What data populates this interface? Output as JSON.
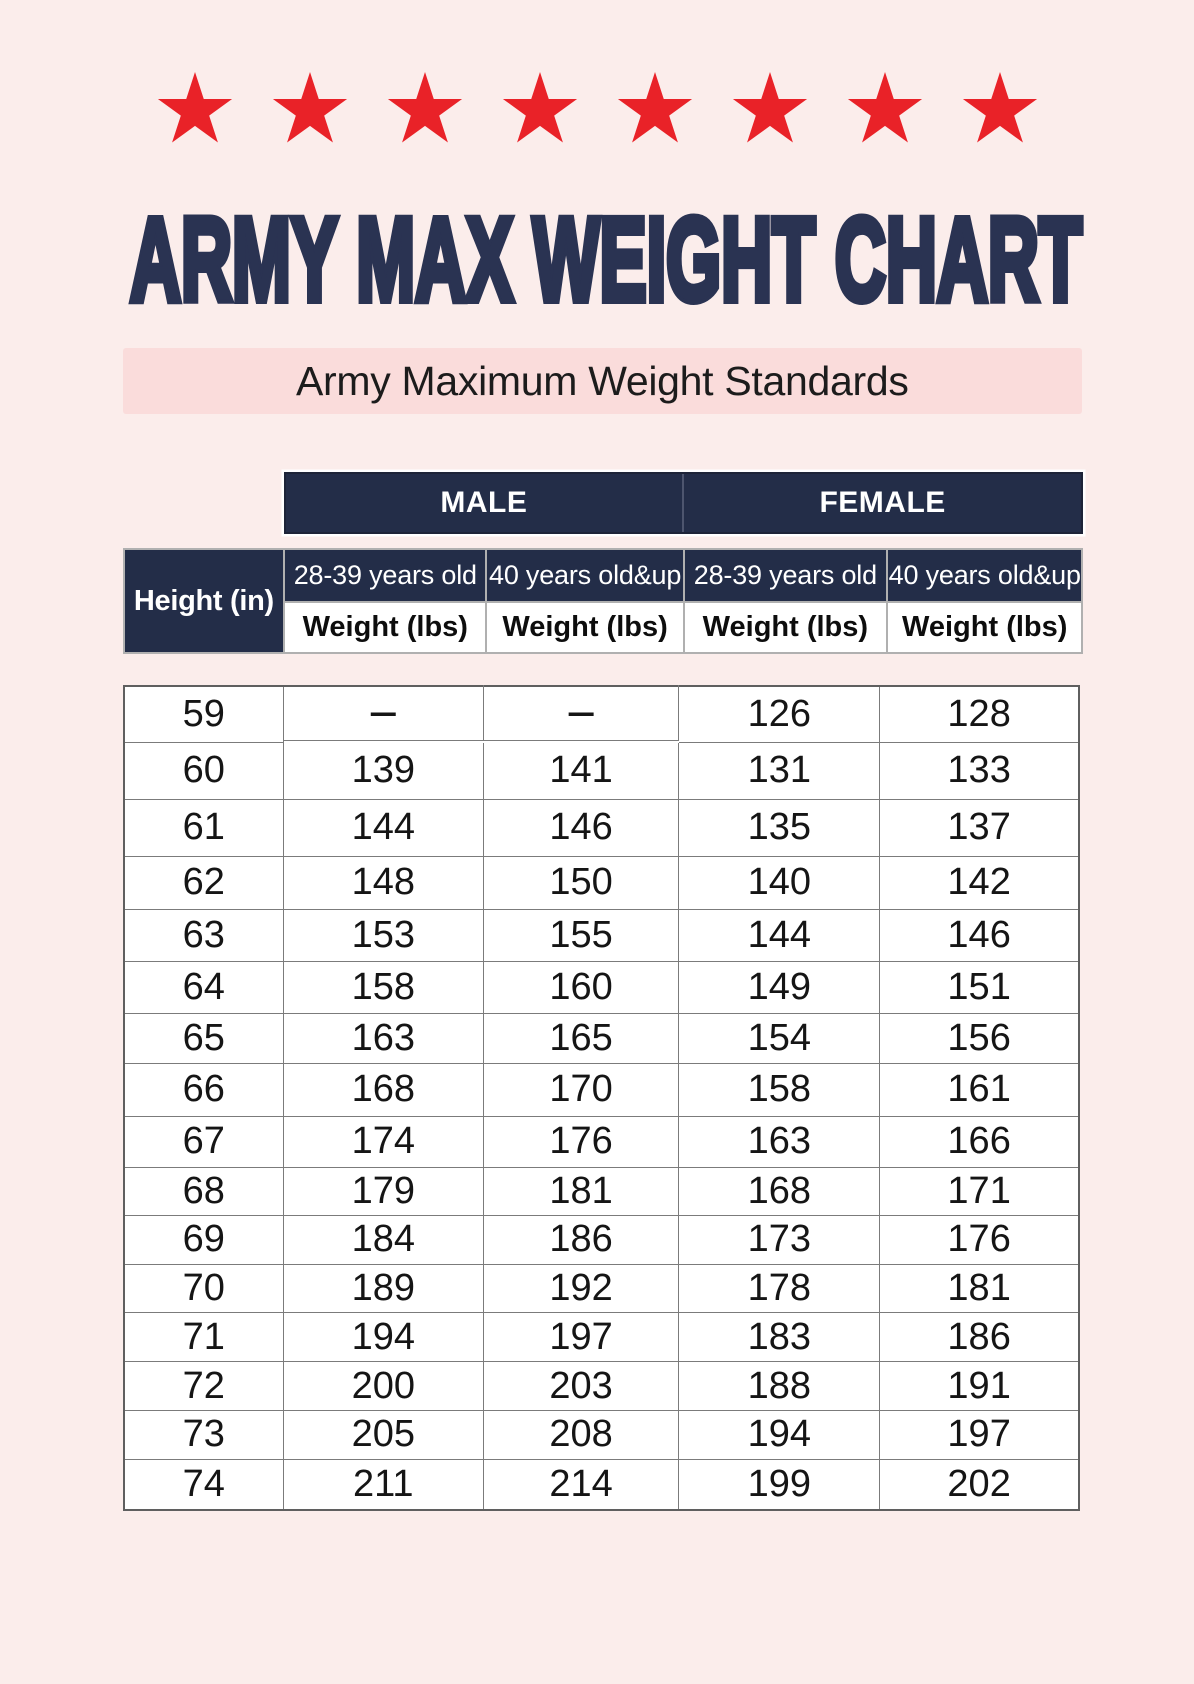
{
  "page": {
    "background_color": "#FBEDEB",
    "title_color": "#2A3352",
    "header_navy_color": "#232D48",
    "star_red_color": "#E92228",
    "subtitle_bar_color": "#FADCDB"
  },
  "decoration": {
    "star_icon": "star",
    "star_count": 8
  },
  "title": "ARMY MAX WEIGHT CHART",
  "subtitle": "Army Maximum Weight Standards",
  "table": {
    "gender_headers": [
      "MALE",
      "FEMALE"
    ],
    "height_header": "Height (in)",
    "age_headers": [
      "28-39 years old",
      "40 years old&up",
      "28-39 years old",
      "40 years old&up"
    ],
    "unit_headers": [
      "Weight (lbs)",
      "Weight (lbs)",
      "Weight (lbs)",
      "Weight (lbs)"
    ],
    "rows": [
      {
        "height": "59",
        "values": [
          "—",
          "—",
          "126",
          "128"
        ]
      },
      {
        "height": "60",
        "values": [
          "139",
          "141",
          "131",
          "133"
        ]
      },
      {
        "height": "61",
        "values": [
          "144",
          "146",
          "135",
          "137"
        ]
      },
      {
        "height": "62",
        "values": [
          "148",
          "150",
          "140",
          "142"
        ]
      },
      {
        "height": "63",
        "values": [
          "153",
          "155",
          "144",
          "146"
        ]
      },
      {
        "height": "64",
        "values": [
          "158",
          "160",
          "149",
          "151"
        ]
      },
      {
        "height": "65",
        "values": [
          "163",
          "165",
          "154",
          "156"
        ]
      },
      {
        "height": "66",
        "values": [
          "168",
          "170",
          "158",
          "161"
        ]
      },
      {
        "height": "67",
        "values": [
          "174",
          "176",
          "163",
          "166"
        ]
      },
      {
        "height": "68",
        "values": [
          "179",
          "181",
          "168",
          "171"
        ]
      },
      {
        "height": "69",
        "values": [
          "184",
          "186",
          "173",
          "176"
        ]
      },
      {
        "height": "70",
        "values": [
          "189",
          "192",
          "178",
          "181"
        ]
      },
      {
        "height": "71",
        "values": [
          "194",
          "197",
          "183",
          "186"
        ]
      },
      {
        "height": "72",
        "values": [
          "200",
          "203",
          "188",
          "191"
        ]
      },
      {
        "height": "73",
        "values": [
          "205",
          "208",
          "194",
          "197"
        ]
      },
      {
        "height": "74",
        "values": [
          "211",
          "214",
          "199",
          "202"
        ]
      }
    ]
  },
  "chart_data": {
    "type": "table",
    "title": "ARMY MAX WEIGHT CHART",
    "subtitle": "Army Maximum Weight Standards",
    "column_groups": [
      "MALE",
      "FEMALE"
    ],
    "columns": [
      "Height (in)",
      "MALE 28-39 years old Weight (lbs)",
      "MALE 40 years old&up Weight (lbs)",
      "FEMALE 28-39 years old Weight (lbs)",
      "FEMALE 40 years old&up Weight (lbs)"
    ],
    "rows": [
      [
        59,
        null,
        null,
        126,
        128
      ],
      [
        60,
        139,
        141,
        131,
        133
      ],
      [
        61,
        144,
        146,
        135,
        137
      ],
      [
        62,
        148,
        150,
        140,
        142
      ],
      [
        63,
        153,
        155,
        144,
        146
      ],
      [
        64,
        158,
        160,
        149,
        151
      ],
      [
        65,
        163,
        165,
        154,
        156
      ],
      [
        66,
        168,
        170,
        158,
        161
      ],
      [
        67,
        174,
        176,
        163,
        166
      ],
      [
        68,
        179,
        181,
        168,
        171
      ],
      [
        69,
        184,
        186,
        173,
        176
      ],
      [
        70,
        189,
        192,
        178,
        181
      ],
      [
        71,
        194,
        197,
        183,
        186
      ],
      [
        72,
        200,
        203,
        188,
        191
      ],
      [
        73,
        205,
        208,
        194,
        197
      ],
      [
        74,
        211,
        214,
        199,
        202
      ]
    ]
  }
}
